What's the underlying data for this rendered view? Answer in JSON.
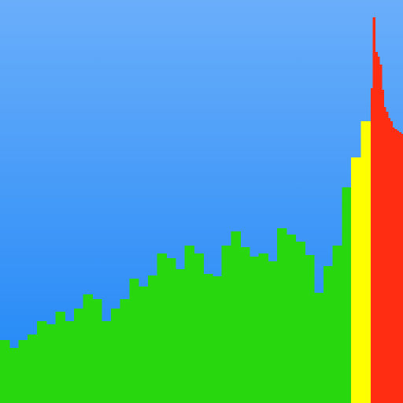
{
  "icon": {
    "name": "bar-histogram-icon",
    "colors": {
      "sky_top": "#6aaefa",
      "sky_bottom": "#1e86f6",
      "normal": "#29d70f",
      "warning": "#ffff00",
      "critical": "#ff2e12"
    },
    "bars": {
      "max_level": 512,
      "levels": [
        80,
        70,
        80,
        87,
        104,
        100,
        116,
        104,
        120,
        138,
        132,
        104,
        120,
        132,
        158,
        148,
        162,
        190,
        184,
        170,
        200,
        190,
        164,
        161,
        200,
        218,
        198,
        186,
        190,
        180,
        222,
        214,
        205,
        188,
        140,
        174,
        200,
        274,
        312,
        358,
        400,
        490,
        446,
        440,
        430,
        398,
        376,
        370,
        362,
        358,
        350,
        348,
        346,
        344,
        342
      ],
      "statuses": [
        "normal",
        "normal",
        "normal",
        "normal",
        "normal",
        "normal",
        "normal",
        "normal",
        "normal",
        "normal",
        "normal",
        "normal",
        "normal",
        "normal",
        "normal",
        "normal",
        "normal",
        "normal",
        "normal",
        "normal",
        "normal",
        "normal",
        "normal",
        "normal",
        "normal",
        "normal",
        "normal",
        "normal",
        "normal",
        "normal",
        "normal",
        "normal",
        "normal",
        "normal",
        "normal",
        "normal",
        "normal",
        "normal",
        "warning",
        "warning",
        "critical",
        "critical",
        "critical",
        "critical",
        "critical",
        "critical",
        "critical",
        "critical",
        "critical",
        "critical",
        "critical",
        "critical",
        "critical",
        "critical",
        "critical"
      ]
    }
  }
}
